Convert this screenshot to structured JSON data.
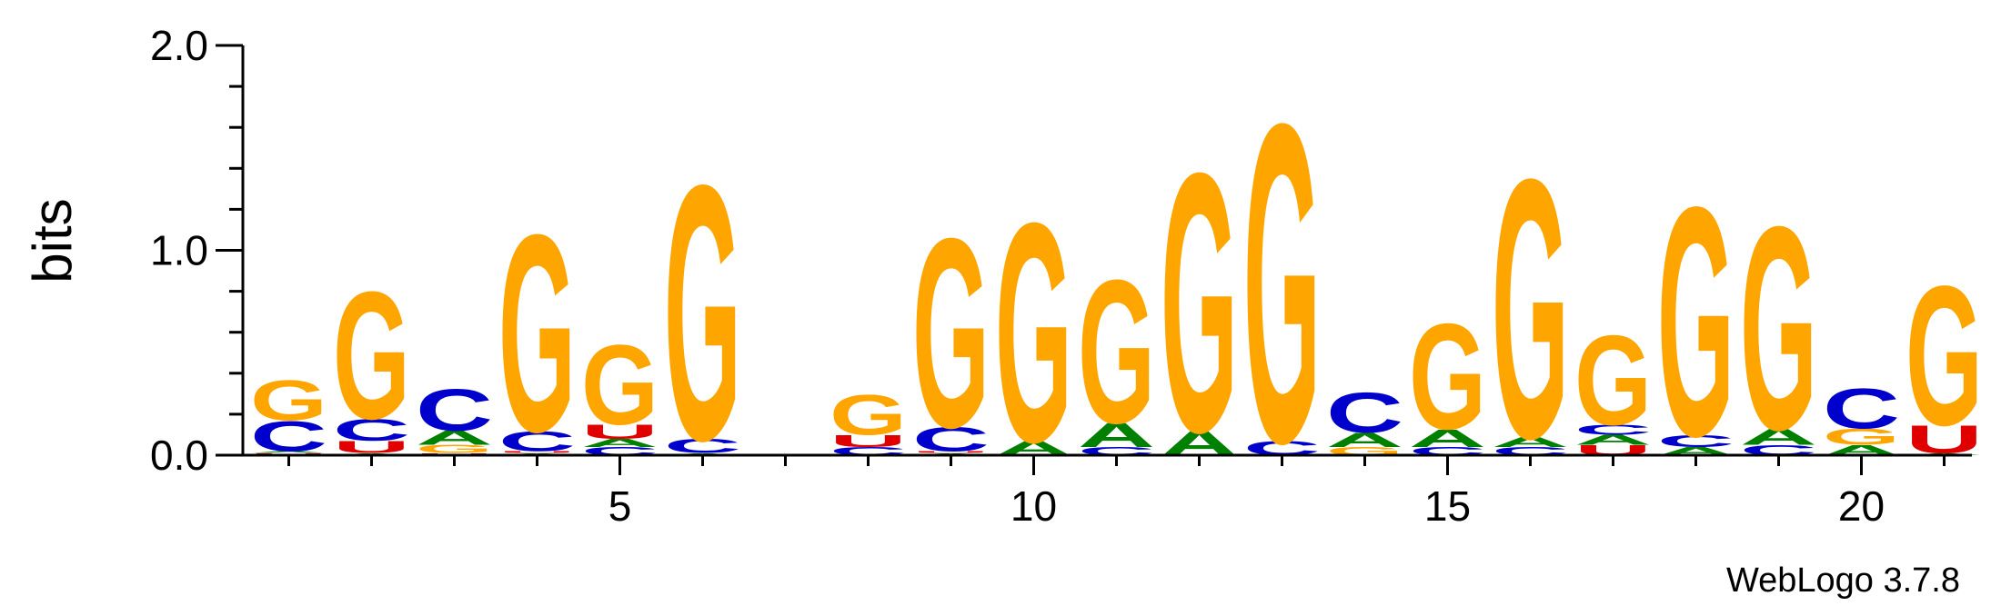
{
  "chart_data": {
    "type": "sequence-logo",
    "ylabel": "bits",
    "ylim": [
      0,
      2.0
    ],
    "yticks": [
      "0.0",
      "1.0",
      "2.0"
    ],
    "xticks": [
      5,
      10,
      15,
      20
    ],
    "colors": {
      "A": "#008000",
      "C": "#0000cc",
      "G": "#ffa500",
      "U": "#e00000"
    },
    "positions": [
      {
        "pos": 1,
        "stack": [
          {
            "base": "U",
            "bits": 0.01
          },
          {
            "base": "A",
            "bits": 0.01
          },
          {
            "base": "C",
            "bits": 0.15
          },
          {
            "base": "G",
            "bits": 0.2
          }
        ]
      },
      {
        "pos": 2,
        "stack": [
          {
            "base": "A",
            "bits": 0.01
          },
          {
            "base": "U",
            "bits": 0.06
          },
          {
            "base": "C",
            "bits": 0.11
          },
          {
            "base": "G",
            "bits": 0.64
          }
        ]
      },
      {
        "pos": 3,
        "stack": [
          {
            "base": "U",
            "bits": 0.01
          },
          {
            "base": "G",
            "bits": 0.04
          },
          {
            "base": "A",
            "bits": 0.07
          },
          {
            "base": "C",
            "bits": 0.21
          }
        ]
      },
      {
        "pos": 4,
        "stack": [
          {
            "base": "A",
            "bits": 0.01
          },
          {
            "base": "U",
            "bits": 0.01
          },
          {
            "base": "C",
            "bits": 0.1
          },
          {
            "base": "G",
            "bits": 0.99
          }
        ]
      },
      {
        "pos": 5,
        "stack": [
          {
            "base": "C",
            "bits": 0.04
          },
          {
            "base": "A",
            "bits": 0.04
          },
          {
            "base": "U",
            "bits": 0.07
          },
          {
            "base": "G",
            "bits": 0.4
          }
        ]
      },
      {
        "pos": 6,
        "stack": [
          {
            "base": "A",
            "bits": 0.01
          },
          {
            "base": "C",
            "bits": 0.07
          },
          {
            "base": "G",
            "bits": 1.28
          }
        ]
      },
      {
        "pos": 7,
        "stack": []
      },
      {
        "pos": 8,
        "stack": [
          {
            "base": "C",
            "bits": 0.04
          },
          {
            "base": "U",
            "bits": 0.06
          },
          {
            "base": "G",
            "bits": 0.2
          }
        ]
      },
      {
        "pos": 9,
        "stack": [
          {
            "base": "A",
            "bits": 0.01
          },
          {
            "base": "U",
            "bits": 0.01
          },
          {
            "base": "C",
            "bits": 0.12
          },
          {
            "base": "G",
            "bits": 0.95
          }
        ]
      },
      {
        "pos": 10,
        "stack": [
          {
            "base": "A",
            "bits": 0.07
          },
          {
            "base": "G",
            "bits": 1.1
          }
        ]
      },
      {
        "pos": 11,
        "stack": [
          {
            "base": "C",
            "bits": 0.04
          },
          {
            "base": "A",
            "bits": 0.12
          },
          {
            "base": "G",
            "bits": 0.72
          }
        ]
      },
      {
        "pos": 12,
        "stack": [
          {
            "base": "A",
            "bits": 0.12
          },
          {
            "base": "G",
            "bits": 1.3
          }
        ]
      },
      {
        "pos": 13,
        "stack": [
          {
            "base": "C",
            "bits": 0.07
          },
          {
            "base": "G",
            "bits": 1.6
          }
        ]
      },
      {
        "pos": 14,
        "stack": [
          {
            "base": "G",
            "bits": 0.04
          },
          {
            "base": "A",
            "bits": 0.07
          },
          {
            "base": "C",
            "bits": 0.2
          }
        ]
      },
      {
        "pos": 15,
        "stack": [
          {
            "base": "C",
            "bits": 0.04
          },
          {
            "base": "A",
            "bits": 0.09
          },
          {
            "base": "G",
            "bits": 0.53
          }
        ]
      },
      {
        "pos": 16,
        "stack": [
          {
            "base": "C",
            "bits": 0.04
          },
          {
            "base": "A",
            "bits": 0.05
          },
          {
            "base": "G",
            "bits": 1.3
          }
        ]
      },
      {
        "pos": 17,
        "stack": [
          {
            "base": "U",
            "bits": 0.05
          },
          {
            "base": "A",
            "bits": 0.05
          },
          {
            "base": "C",
            "bits": 0.05
          },
          {
            "base": "G",
            "bits": 0.45
          }
        ]
      },
      {
        "pos": 18,
        "stack": [
          {
            "base": "A",
            "bits": 0.04
          },
          {
            "base": "C",
            "bits": 0.06
          },
          {
            "base": "G",
            "bits": 1.15
          }
        ]
      },
      {
        "pos": 19,
        "stack": [
          {
            "base": "C",
            "bits": 0.05
          },
          {
            "base": "A",
            "bits": 0.08
          },
          {
            "base": "G",
            "bits": 1.02
          }
        ]
      },
      {
        "pos": 20,
        "stack": [
          {
            "base": "A",
            "bits": 0.05
          },
          {
            "base": "G",
            "bits": 0.08
          },
          {
            "base": "C",
            "bits": 0.2
          }
        ]
      },
      {
        "pos": 21,
        "stack": [
          {
            "base": "A",
            "bits": 0.01
          },
          {
            "base": "U",
            "bits": 0.14
          },
          {
            "base": "G",
            "bits": 0.7
          }
        ]
      }
    ]
  },
  "footer": {
    "credit": "WebLogo 3.7.8"
  }
}
